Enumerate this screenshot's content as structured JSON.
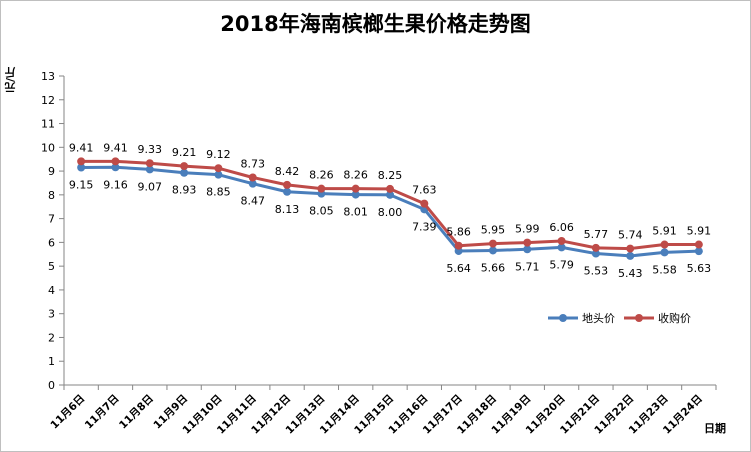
{
  "chart_data": {
    "type": "line",
    "title": "2018年海南槟榔生果价格走势图",
    "ylabel": "元/斤",
    "xlabel": "日期",
    "ylim": [
      0,
      13
    ],
    "yticks": [
      "0",
      "1",
      "2",
      "3",
      "4",
      "5",
      "6",
      "7",
      "8",
      "9",
      "10",
      "11",
      "12",
      "13"
    ],
    "grid": false,
    "legend_position": "lower-right",
    "categories": [
      "11月6日",
      "11月7日",
      "11月8日",
      "11月9日",
      "11月10日",
      "11月11日",
      "11月12日",
      "11月13日",
      "11月14日",
      "11月15日",
      "11月16日",
      "11月17日",
      "11月18日",
      "11月19日",
      "11月20日",
      "11月21日",
      "11月22日",
      "11月23日",
      "11月24日"
    ],
    "series": [
      {
        "name": "地头价",
        "color": "#4a7ebb",
        "values": [
          9.15,
          9.16,
          9.07,
          8.93,
          8.85,
          8.47,
          8.13,
          8.05,
          8.01,
          8.0,
          7.39,
          5.64,
          5.66,
          5.71,
          5.79,
          5.53,
          5.43,
          5.58,
          5.63
        ],
        "labels": [
          "9.15",
          "9.16",
          "9.07",
          "8.93",
          "8.85",
          "8.47",
          "8.13",
          "8.05",
          "8.01",
          "8.00",
          "7.39",
          "5.64",
          "5.66",
          "5.71",
          "5.79",
          "5.53",
          "5.43",
          "5.58",
          "5.63"
        ]
      },
      {
        "name": "收购价",
        "color": "#be4b48",
        "values": [
          9.41,
          9.41,
          9.33,
          9.21,
          9.12,
          8.73,
          8.42,
          8.26,
          8.26,
          8.25,
          7.63,
          5.86,
          5.95,
          5.99,
          6.06,
          5.77,
          5.74,
          5.91,
          5.91
        ],
        "labels": [
          "9.41",
          "9.41",
          "9.33",
          "9.21",
          "9.12",
          "8.73",
          "8.42",
          "8.26",
          "8.26",
          "8.25",
          "7.63",
          "5.86",
          "5.95",
          "5.99",
          "6.06",
          "5.77",
          "5.74",
          "5.91",
          "5.91"
        ]
      }
    ]
  }
}
